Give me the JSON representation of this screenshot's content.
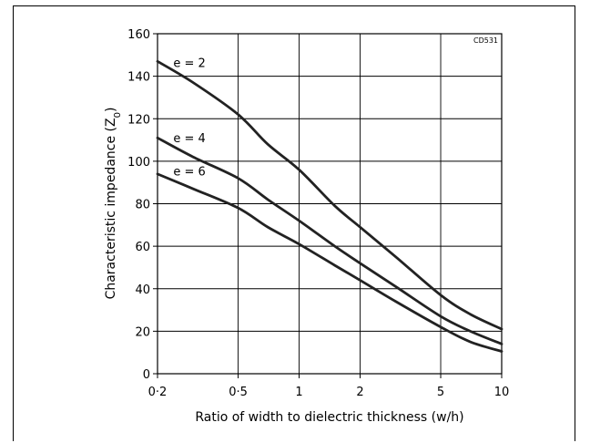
{
  "chart_data": {
    "type": "line",
    "xscale": "log",
    "xlim": [
      0.2,
      10
    ],
    "ylim": [
      0,
      160
    ],
    "xticks": [
      0.2,
      0.5,
      1,
      2,
      5,
      10
    ],
    "xtick_labels": [
      "0·2",
      "0·5",
      "1",
      "2",
      "5",
      "10"
    ],
    "yticks": [
      0,
      20,
      40,
      60,
      80,
      100,
      120,
      140,
      160
    ],
    "ytick_labels": [
      "0",
      "20",
      "40",
      "60",
      "80",
      "100",
      "120",
      "140",
      "160"
    ],
    "grid": true,
    "xlabel": "Ratio of width to dielectric thickness (w/h)",
    "ylabel_main": "Characteristic impedance (Z",
    "ylabel_sub": "0",
    "ylabel_end": ")",
    "code": "CD531",
    "series": [
      {
        "name": "e = 2",
        "x": [
          0.2,
          0.3,
          0.5,
          0.7,
          1,
          1.5,
          2,
          3,
          5,
          7,
          10
        ],
        "y": [
          147,
          137,
          122,
          108,
          96,
          79,
          69,
          55,
          37,
          28,
          21
        ]
      },
      {
        "name": "e = 4",
        "x": [
          0.2,
          0.3,
          0.5,
          0.7,
          1,
          1.5,
          2,
          3,
          5,
          7,
          10
        ],
        "y": [
          111,
          102,
          92,
          82,
          72,
          60,
          52,
          41,
          27,
          20,
          14
        ]
      },
      {
        "name": "e = 6",
        "x": [
          0.2,
          0.3,
          0.5,
          0.7,
          1,
          1.5,
          2,
          3,
          5,
          7,
          10
        ],
        "y": [
          94,
          87,
          78,
          69,
          61,
          51,
          44,
          34,
          22,
          15,
          10.5
        ]
      }
    ]
  }
}
